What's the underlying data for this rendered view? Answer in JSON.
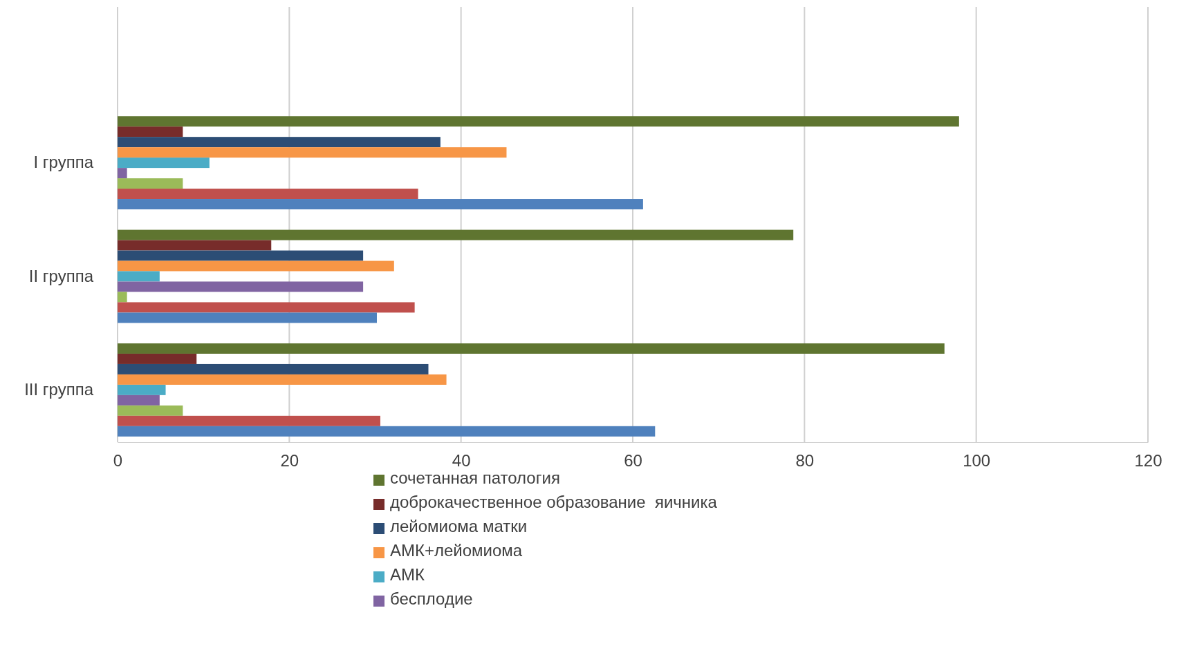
{
  "chart_data": {
    "type": "bar",
    "orientation": "horizontal",
    "categories": [
      "I группа",
      "II группа",
      "III группа"
    ],
    "series": [
      {
        "name": "сочетанная патология",
        "color": "#5f7530",
        "values": [
          98,
          78.7,
          96.3
        ]
      },
      {
        "name": "доброкачественное образование  яичника",
        "color": "#772c2a",
        "values": [
          7.6,
          17.9,
          9.2
        ]
      },
      {
        "name": "лейомиома матки",
        "color": "#2c4d75",
        "values": [
          37.6,
          28.6,
          36.2
        ]
      },
      {
        "name": "АМК+лейомиома",
        "color": "#f79646",
        "values": [
          45.3,
          32.2,
          38.3
        ]
      },
      {
        "name": "АМК",
        "color": "#4bacc6",
        "values": [
          10.7,
          4.9,
          5.6
        ]
      },
      {
        "name": "бесплодие",
        "color": "#8064a2",
        "values": [
          1.1,
          28.6,
          4.9
        ]
      },
      {
        "color": "#9bbb59",
        "values": [
          7.6,
          1.1,
          7.6
        ]
      },
      {
        "color": "#c0504d",
        "values": [
          35,
          34.6,
          30.6
        ]
      },
      {
        "color": "#4f81bd",
        "values": [
          61.2,
          30.2,
          62.6
        ]
      }
    ],
    "xlim": [
      0,
      120
    ],
    "xticks": [
      0,
      20,
      40,
      60,
      80,
      100,
      120
    ],
    "grid": "x",
    "legend": "bottom"
  }
}
